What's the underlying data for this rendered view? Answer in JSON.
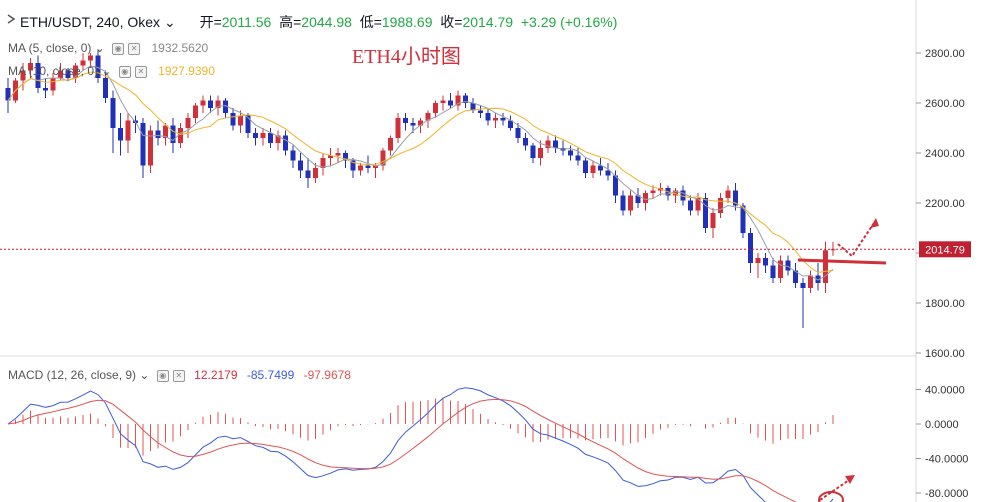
{
  "header": {
    "symbol": "ETH/USDT, 240, Okex",
    "open_label": "开",
    "open": "2011.56",
    "high_label": "高",
    "high": "2044.98",
    "low_label": "低",
    "low": "1988.69",
    "close_label": "收",
    "close": "2014.79",
    "change": "+3.29 (+0.16%)",
    "up_color": "#22a846"
  },
  "indicators": {
    "ma5_label": "MA (5, close, 0)",
    "ma5_value": "1932.5620",
    "ma10_label": "MA (10, close, 0)",
    "ma10_value": "1927.9390",
    "ma10_color": "#f0b429",
    "macd_label": "MACD (12, 26, close, 9)",
    "macd_hist": "12.2179",
    "macd_line": "-85.7499",
    "macd_signal": "-97.9678"
  },
  "annotation": "ETH4小时图",
  "price_tag": "2014.79",
  "chart_data": [
    {
      "type": "candlestick",
      "title": "",
      "y_ticks": [
        "2800.00",
        "2600.00",
        "2400.00",
        "2200.00",
        "2000.00",
        "1800.00",
        "1600.00"
      ],
      "ylim": [
        1600,
        2900
      ],
      "current_price": 2014.79,
      "up_color": "#d0303a",
      "down_color": "#2130b8",
      "ohlc": [
        [
          2660,
          2700,
          2560,
          2610
        ],
        [
          2610,
          2700,
          2600,
          2690
        ],
        [
          2690,
          2760,
          2650,
          2730
        ],
        [
          2730,
          2780,
          2700,
          2760
        ],
        [
          2760,
          2790,
          2640,
          2660
        ],
        [
          2660,
          2700,
          2620,
          2650
        ],
        [
          2650,
          2720,
          2630,
          2700
        ],
        [
          2700,
          2760,
          2690,
          2730
        ],
        [
          2730,
          2740,
          2690,
          2700
        ],
        [
          2700,
          2760,
          2680,
          2750
        ],
        [
          2750,
          2800,
          2730,
          2770
        ],
        [
          2770,
          2800,
          2740,
          2790
        ],
        [
          2790,
          2810,
          2680,
          2700
        ],
        [
          2700,
          2730,
          2600,
          2620
        ],
        [
          2620,
          2650,
          2400,
          2500
        ],
        [
          2500,
          2560,
          2390,
          2450
        ],
        [
          2450,
          2560,
          2400,
          2530
        ],
        [
          2530,
          2550,
          2480,
          2520
        ],
        [
          2520,
          2540,
          2300,
          2350
        ],
        [
          2350,
          2510,
          2320,
          2490
        ],
        [
          2490,
          2530,
          2430,
          2460
        ],
        [
          2460,
          2520,
          2430,
          2510
        ],
        [
          2510,
          2540,
          2400,
          2440
        ],
        [
          2440,
          2520,
          2420,
          2500
        ],
        [
          2500,
          2560,
          2460,
          2540
        ],
        [
          2540,
          2600,
          2520,
          2590
        ],
        [
          2590,
          2630,
          2560,
          2610
        ],
        [
          2610,
          2630,
          2560,
          2580
        ],
        [
          2580,
          2630,
          2550,
          2610
        ],
        [
          2610,
          2620,
          2540,
          2560
        ],
        [
          2560,
          2580,
          2490,
          2510
        ],
        [
          2510,
          2570,
          2480,
          2550
        ],
        [
          2550,
          2560,
          2460,
          2480
        ],
        [
          2480,
          2500,
          2430,
          2460
        ],
        [
          2460,
          2500,
          2430,
          2480
        ],
        [
          2480,
          2500,
          2420,
          2440
        ],
        [
          2440,
          2490,
          2410,
          2470
        ],
        [
          2470,
          2490,
          2390,
          2410
        ],
        [
          2410,
          2430,
          2340,
          2370
        ],
        [
          2370,
          2400,
          2300,
          2330
        ],
        [
          2330,
          2380,
          2260,
          2300
        ],
        [
          2300,
          2360,
          2280,
          2340
        ],
        [
          2340,
          2400,
          2310,
          2380
        ],
        [
          2380,
          2420,
          2350,
          2390
        ],
        [
          2390,
          2420,
          2360,
          2400
        ],
        [
          2400,
          2410,
          2340,
          2370
        ],
        [
          2370,
          2380,
          2300,
          2330
        ],
        [
          2330,
          2360,
          2310,
          2350
        ],
        [
          2350,
          2390,
          2320,
          2340
        ],
        [
          2340,
          2360,
          2300,
          2350
        ],
        [
          2350,
          2420,
          2330,
          2410
        ],
        [
          2410,
          2470,
          2390,
          2460
        ],
        [
          2460,
          2560,
          2440,
          2540
        ],
        [
          2540,
          2560,
          2490,
          2520
        ],
        [
          2520,
          2540,
          2480,
          2510
        ],
        [
          2510,
          2540,
          2480,
          2530
        ],
        [
          2530,
          2570,
          2500,
          2560
        ],
        [
          2560,
          2610,
          2540,
          2600
        ],
        [
          2600,
          2630,
          2570,
          2610
        ],
        [
          2610,
          2640,
          2580,
          2590
        ],
        [
          2590,
          2650,
          2570,
          2630
        ],
        [
          2630,
          2640,
          2580,
          2600
        ],
        [
          2600,
          2620,
          2560,
          2570
        ],
        [
          2570,
          2590,
          2540,
          2560
        ],
        [
          2560,
          2580,
          2510,
          2530
        ],
        [
          2530,
          2560,
          2500,
          2540
        ],
        [
          2540,
          2560,
          2510,
          2530
        ],
        [
          2530,
          2550,
          2490,
          2500
        ],
        [
          2500,
          2520,
          2440,
          2460
        ],
        [
          2460,
          2480,
          2410,
          2430
        ],
        [
          2430,
          2440,
          2360,
          2380
        ],
        [
          2380,
          2450,
          2350,
          2420
        ],
        [
          2420,
          2470,
          2400,
          2450
        ],
        [
          2450,
          2470,
          2400,
          2420
        ],
        [
          2420,
          2450,
          2390,
          2410
        ],
        [
          2410,
          2430,
          2370,
          2390
        ],
        [
          2390,
          2420,
          2350,
          2370
        ],
        [
          2370,
          2380,
          2300,
          2320
        ],
        [
          2320,
          2370,
          2300,
          2350
        ],
        [
          2350,
          2380,
          2310,
          2330
        ],
        [
          2330,
          2360,
          2290,
          2310
        ],
        [
          2310,
          2330,
          2200,
          2230
        ],
        [
          2230,
          2250,
          2150,
          2170
        ],
        [
          2170,
          2250,
          2150,
          2230
        ],
        [
          2230,
          2260,
          2180,
          2200
        ],
        [
          2200,
          2250,
          2170,
          2240
        ],
        [
          2240,
          2270,
          2220,
          2250
        ],
        [
          2250,
          2280,
          2230,
          2260
        ],
        [
          2260,
          2270,
          2210,
          2230
        ],
        [
          2230,
          2260,
          2200,
          2250
        ],
        [
          2250,
          2270,
          2190,
          2210
        ],
        [
          2210,
          2230,
          2150,
          2170
        ],
        [
          2170,
          2240,
          2150,
          2220
        ],
        [
          2220,
          2240,
          2080,
          2100
        ],
        [
          2100,
          2180,
          2060,
          2160
        ],
        [
          2160,
          2240,
          2140,
          2220
        ],
        [
          2220,
          2270,
          2200,
          2250
        ],
        [
          2250,
          2280,
          2170,
          2190
        ],
        [
          2190,
          2200,
          2060,
          2080
        ],
        [
          2080,
          2100,
          1920,
          1960
        ],
        [
          1960,
          2000,
          1900,
          1980
        ],
        [
          1980,
          2000,
          1920,
          1950
        ],
        [
          1950,
          1980,
          1880,
          1900
        ],
        [
          1900,
          1990,
          1880,
          1970
        ],
        [
          1970,
          1990,
          1910,
          1930
        ],
        [
          1930,
          1960,
          1860,
          1880
        ],
        [
          1880,
          1900,
          1700,
          1860
        ],
        [
          1860,
          1930,
          1840,
          1910
        ],
        [
          1910,
          1960,
          1850,
          1880
        ],
        [
          1880,
          2045,
          1840,
          2011
        ],
        [
          2011,
          2045,
          1989,
          2015
        ]
      ],
      "ma5_color": "#9aa0a6",
      "ma10_color": "#f0b429"
    },
    {
      "type": "macd",
      "y_ticks": [
        "40.0000",
        "0.0000",
        "-40.0000",
        "-80.0000"
      ],
      "ylim": [
        -90,
        55
      ],
      "macd_color": "#3b5bdb",
      "signal_color": "#e05454",
      "hist_color": "#e05454"
    }
  ]
}
